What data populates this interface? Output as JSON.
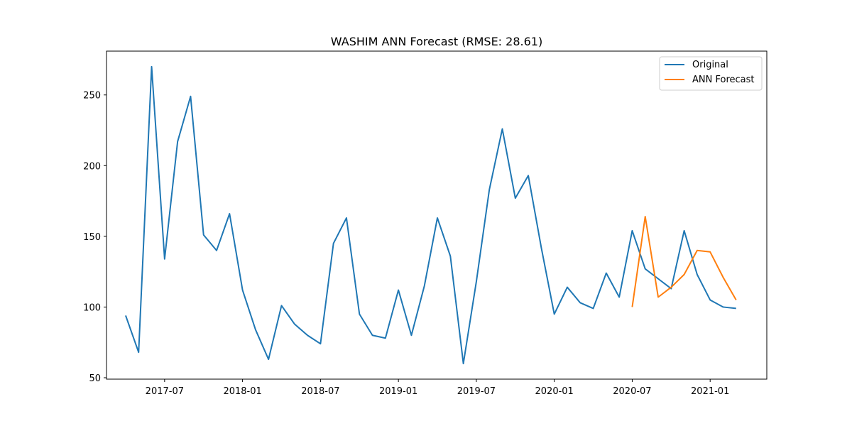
{
  "chart_data": {
    "type": "line",
    "title": "WASHIM ANN Forecast (RMSE: 28.61)",
    "xlabel": "",
    "ylabel": "",
    "x_ticks": [
      "2017-07",
      "2018-01",
      "2018-07",
      "2019-01",
      "2019-07",
      "2020-01",
      "2020-07",
      "2021-01"
    ],
    "y_ticks": [
      50,
      100,
      150,
      200,
      250
    ],
    "xlim": [
      "2017-02-17",
      "2021-05-12"
    ],
    "ylim": [
      49,
      281
    ],
    "grid": false,
    "legend": {
      "placement": "top-right",
      "entries": [
        "Original",
        "ANN Forecast"
      ]
    },
    "series": [
      {
        "name": "Original",
        "color": "#1f77b4",
        "x": [
          "2017-04",
          "2017-05",
          "2017-06",
          "2017-07",
          "2017-08",
          "2017-09",
          "2017-10",
          "2017-11",
          "2017-12",
          "2018-01",
          "2018-02",
          "2018-03",
          "2018-04",
          "2018-05",
          "2018-06",
          "2018-07",
          "2018-08",
          "2018-09",
          "2018-10",
          "2018-11",
          "2018-12",
          "2019-01",
          "2019-02",
          "2019-03",
          "2019-04",
          "2019-05",
          "2019-06",
          "2019-07",
          "2019-08",
          "2019-09",
          "2019-10",
          "2019-11",
          "2019-12",
          "2020-01",
          "2020-02",
          "2020-03",
          "2020-04",
          "2020-05",
          "2020-06",
          "2020-07",
          "2020-08",
          "2020-09",
          "2020-10",
          "2020-11",
          "2020-12",
          "2021-01",
          "2021-02",
          "2021-03"
        ],
        "values": [
          94,
          68,
          270,
          134,
          217,
          249,
          151,
          140,
          166,
          112,
          84,
          63,
          101,
          88,
          80,
          74,
          145,
          163,
          95,
          80,
          78,
          112,
          80,
          115,
          163,
          136,
          60,
          118,
          183,
          226,
          177,
          193,
          142,
          95,
          114,
          103,
          99,
          124,
          107,
          154,
          127,
          120,
          113,
          154,
          123,
          105,
          100,
          99
        ]
      },
      {
        "name": "ANN Forecast",
        "color": "#ff7f0e",
        "x": [
          "2020-07",
          "2020-08",
          "2020-09",
          "2020-10",
          "2020-11",
          "2020-12",
          "2021-01",
          "2021-02",
          "2021-03"
        ],
        "values": [
          100,
          164,
          107,
          114,
          123,
          140,
          139,
          121,
          105
        ]
      }
    ]
  }
}
